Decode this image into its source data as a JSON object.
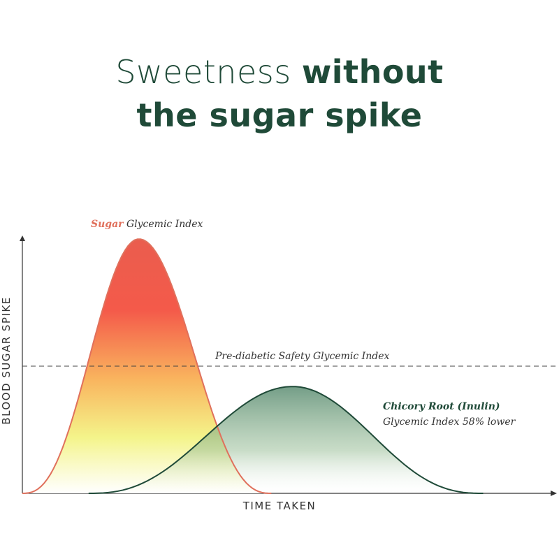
{
  "headline": {
    "line1_light": "Sweetness ",
    "line1_bold": "without",
    "line2_bold": "the sugar spike"
  },
  "chart_data": {
    "type": "area",
    "title": "Sweetness without the sugar spike",
    "xlabel": "TIME TAKEN",
    "ylabel": "BLOOD SUGAR SPIKE",
    "xlim": [
      0,
      100
    ],
    "ylim": [
      0,
      100
    ],
    "grid": false,
    "series": [
      {
        "key": "sugar",
        "label_emph": "Sugar",
        "label_rest": " Glycemic Index",
        "color": "#e0705c",
        "curve": {
          "start": 0,
          "peak_x": 22,
          "peak_y": 100,
          "end": 47
        }
      },
      {
        "key": "chicory",
        "label_emph": "Chicory Root (Inulin)",
        "label_rest": "Glycemic Index 58% lower",
        "color": "#1f4a38",
        "curve": {
          "start": 12.5,
          "peak_x": 51,
          "peak_y": 42,
          "end": 87
        }
      }
    ],
    "reference_line": {
      "label": "Pre-diabetic Safety Glycemic Index",
      "y": 50
    }
  }
}
